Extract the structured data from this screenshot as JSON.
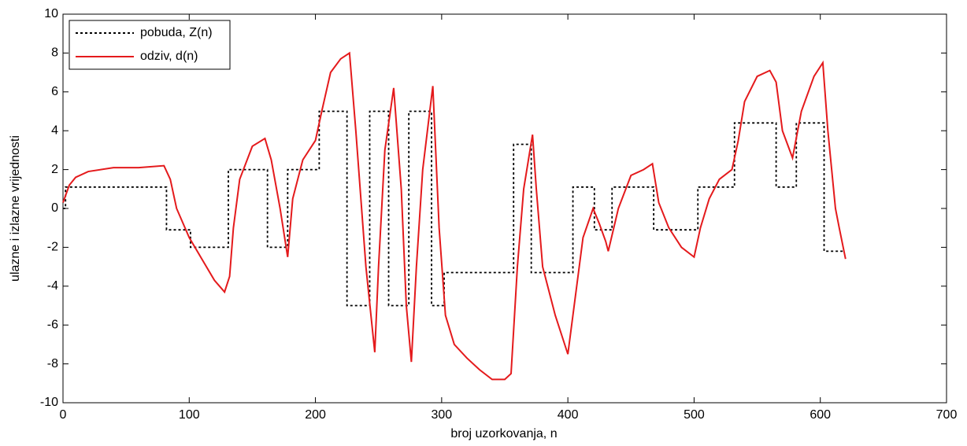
{
  "chart_data": {
    "type": "line",
    "xlabel": "broj uzorkovanja, n",
    "ylabel": "ulazne i izlazne vrijednosti",
    "xlim": [
      0,
      700
    ],
    "ylim": [
      -10,
      10
    ],
    "xticks": [
      0,
      100,
      200,
      300,
      400,
      500,
      600,
      700
    ],
    "yticks": [
      -10,
      -8,
      -6,
      -4,
      -2,
      0,
      2,
      4,
      6,
      8,
      10
    ],
    "grid": false,
    "legend": "upper left",
    "series": [
      {
        "name": "pobuda, Z(n)",
        "color": "#000000",
        "dash": "dotted",
        "x": [
          0,
          2,
          2,
          82,
          82,
          101,
          101,
          131,
          131,
          162,
          162,
          178,
          178,
          203,
          203,
          225,
          225,
          243,
          243,
          258,
          258,
          274,
          274,
          292,
          292,
          302,
          302,
          357,
          357,
          371,
          371,
          404,
          404,
          421,
          421,
          435,
          435,
          468,
          468,
          503,
          503,
          532,
          532,
          565,
          565,
          581,
          581,
          603,
          603,
          619
        ],
        "values": [
          0,
          0,
          1.1,
          1.1,
          -1.1,
          -1.1,
          -2,
          -2,
          2,
          2,
          -2,
          -2,
          2,
          2,
          5,
          5,
          -5,
          -5,
          5,
          5,
          -5,
          -5,
          5,
          5,
          -5,
          -5,
          -3.3,
          -3.3,
          3.3,
          3.3,
          -3.3,
          -3.3,
          1.1,
          1.1,
          -1.1,
          -1.1,
          1.1,
          1.1,
          -1.1,
          -1.1,
          1.1,
          1.1,
          4.4,
          4.4,
          1.1,
          1.1,
          4.4,
          4.4,
          -2.2,
          -2.2
        ]
      },
      {
        "name": "odziv, d(n)",
        "color": "#e41a1c",
        "dash": "solid",
        "x": [
          0,
          5,
          10,
          20,
          40,
          60,
          80,
          85,
          90,
          100,
          110,
          120,
          128,
          132,
          135,
          140,
          150,
          160,
          165,
          172,
          178,
          182,
          190,
          200,
          205,
          212,
          220,
          227,
          232,
          240,
          247,
          250,
          255,
          262,
          268,
          272,
          276,
          280,
          285,
          293,
          298,
          303,
          310,
          320,
          330,
          340,
          350,
          355,
          360,
          365,
          372,
          375,
          380,
          390,
          400,
          405,
          412,
          420,
          425,
          430,
          432,
          440,
          450,
          460,
          467,
          472,
          480,
          490,
          500,
          505,
          512,
          520,
          530,
          535,
          540,
          550,
          560,
          565,
          570,
          578,
          585,
          595,
          602,
          606,
          612,
          615,
          620
        ],
        "values": [
          0.3,
          1.2,
          1.6,
          1.9,
          2.1,
          2.1,
          2.2,
          1.5,
          0,
          -1.5,
          -2.6,
          -3.7,
          -4.3,
          -3.5,
          -1,
          1.5,
          3.2,
          3.6,
          2.5,
          0,
          -2.5,
          0.5,
          2.5,
          3.5,
          5,
          7,
          7.7,
          8,
          4,
          -3,
          -7.4,
          -3,
          3,
          6.2,
          1,
          -5,
          -7.9,
          -3,
          2,
          6.3,
          -1,
          -5.5,
          -7,
          -7.7,
          -8.3,
          -8.8,
          -8.8,
          -8.5,
          -3,
          1,
          3.8,
          1,
          -3,
          -5.5,
          -7.5,
          -5,
          -1.5,
          0,
          -0.8,
          -1.7,
          -2.2,
          0,
          1.7,
          2,
          2.3,
          0.3,
          -1,
          -2,
          -2.5,
          -1,
          0.5,
          1.5,
          2,
          3.5,
          5.5,
          6.8,
          7.1,
          6.5,
          4,
          2.6,
          5,
          6.8,
          7.5,
          4,
          0,
          -1,
          -2.6
        ]
      }
    ]
  }
}
